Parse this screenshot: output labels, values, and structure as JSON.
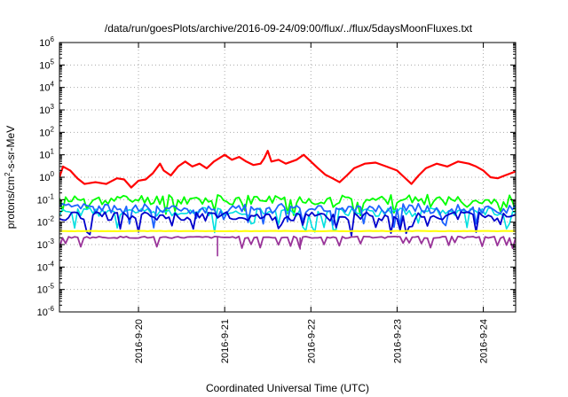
{
  "chart_data": {
    "type": "line",
    "title": "/data/run/goesPlots/archive/2016-09-24/09:00/flux/../flux/5daysMoonFluxes.txt",
    "xlabel": "Coordinated Universal Time (UTC)",
    "ylabel_parts": [
      "protons/cm",
      "2",
      "-s-sr-MeV"
    ],
    "y_scale": "log",
    "ylim": [
      1e-06,
      1000000.0
    ],
    "y_ticks": [
      {
        "base": "10",
        "exp": "-6",
        "value": 1e-06
      },
      {
        "base": "10",
        "exp": "-5",
        "value": 1e-05
      },
      {
        "base": "10",
        "exp": "-4",
        "value": 0.0001
      },
      {
        "base": "10",
        "exp": "-3",
        "value": 0.001
      },
      {
        "base": "10",
        "exp": "-2",
        "value": 0.01
      },
      {
        "base": "10",
        "exp": "-1",
        "value": 0.1
      },
      {
        "base": "10",
        "exp": "0",
        "value": 1
      },
      {
        "base": "10",
        "exp": "1",
        "value": 10
      },
      {
        "base": "10",
        "exp": "2",
        "value": 100
      },
      {
        "base": "10",
        "exp": "3",
        "value": 1000
      },
      {
        "base": "10",
        "exp": "4",
        "value": 10000
      },
      {
        "base": "10",
        "exp": "5",
        "value": 100000
      },
      {
        "base": "10",
        "exp": "6",
        "value": 1000000
      }
    ],
    "xlim": [
      "2016-09-19T02:00",
      "2016-09-24T09:00"
    ],
    "x_ticks": [
      {
        "label": "2016-9-20",
        "value": "2016-09-20T00:00"
      },
      {
        "label": "2016-9-21",
        "value": "2016-09-21T00:00"
      },
      {
        "label": "2016-9-22",
        "value": "2016-09-22T00:00"
      },
      {
        "label": "2016-9-23",
        "value": "2016-09-23T00:00"
      },
      {
        "label": "2016-9-24",
        "value": "2016-09-24T00:00"
      }
    ],
    "grid": true,
    "series": [
      {
        "color": "#ff0000",
        "width": 2.2,
        "points": [
          [
            "2016-09-19T02:00",
            1.0
          ],
          [
            "2016-09-19T03:00",
            3.0
          ],
          [
            "2016-09-19T05:00",
            2.0
          ],
          [
            "2016-09-19T07:00",
            0.9
          ],
          [
            "2016-09-19T09:00",
            0.5
          ],
          [
            "2016-09-19T12:00",
            0.6
          ],
          [
            "2016-09-19T15:00",
            0.5
          ],
          [
            "2016-09-19T18:00",
            0.9
          ],
          [
            "2016-09-19T20:00",
            0.8
          ],
          [
            "2016-09-19T22:00",
            0.35
          ],
          [
            "2016-09-20T00:00",
            0.7
          ],
          [
            "2016-09-20T02:00",
            0.8
          ],
          [
            "2016-09-20T04:00",
            1.5
          ],
          [
            "2016-09-20T06:00",
            4.0
          ],
          [
            "2016-09-20T07:00",
            2.0
          ],
          [
            "2016-09-20T09:00",
            1.2
          ],
          [
            "2016-09-20T11:00",
            3.0
          ],
          [
            "2016-09-20T13:00",
            5.0
          ],
          [
            "2016-09-20T15:00",
            3.0
          ],
          [
            "2016-09-20T17:00",
            4.0
          ],
          [
            "2016-09-20T19:00",
            2.5
          ],
          [
            "2016-09-20T21:00",
            5.0
          ],
          [
            "2016-09-21T00:00",
            10.0
          ],
          [
            "2016-09-21T02:00",
            6.0
          ],
          [
            "2016-09-21T04:00",
            8.0
          ],
          [
            "2016-09-21T06:00",
            5.0
          ],
          [
            "2016-09-21T08:00",
            3.5
          ],
          [
            "2016-09-21T10:00",
            4.0
          ],
          [
            "2016-09-21T11:00",
            7.0
          ],
          [
            "2016-09-21T12:00",
            15.0
          ],
          [
            "2016-09-21T13:00",
            5.0
          ],
          [
            "2016-09-21T15:00",
            6.0
          ],
          [
            "2016-09-21T17:00",
            4.0
          ],
          [
            "2016-09-21T20:00",
            6.0
          ],
          [
            "2016-09-21T22:00",
            10.0
          ],
          [
            "2016-09-22T00:00",
            5.0
          ],
          [
            "2016-09-22T02:00",
            2.5
          ],
          [
            "2016-09-22T04:00",
            1.3
          ],
          [
            "2016-09-22T06:00",
            0.9
          ],
          [
            "2016-09-22T08:00",
            0.6
          ],
          [
            "2016-09-22T10:00",
            1.2
          ],
          [
            "2016-09-22T12:00",
            2.5
          ],
          [
            "2016-09-22T15:00",
            4.0
          ],
          [
            "2016-09-22T18:00",
            4.5
          ],
          [
            "2016-09-22T21:00",
            3.0
          ],
          [
            "2016-09-23T00:00",
            2.0
          ],
          [
            "2016-09-23T02:00",
            1.0
          ],
          [
            "2016-09-23T04:00",
            0.5
          ],
          [
            "2016-09-23T06:00",
            1.2
          ],
          [
            "2016-09-23T08:00",
            2.5
          ],
          [
            "2016-09-23T11:00",
            4.0
          ],
          [
            "2016-09-23T14:00",
            3.0
          ],
          [
            "2016-09-23T17:00",
            5.0
          ],
          [
            "2016-09-23T20:00",
            4.0
          ],
          [
            "2016-09-23T22:00",
            3.0
          ],
          [
            "2016-09-24T00:00",
            2.0
          ],
          [
            "2016-09-24T02:00",
            1.0
          ],
          [
            "2016-09-24T04:00",
            0.9
          ],
          [
            "2016-09-24T06:00",
            1.2
          ],
          [
            "2016-09-24T09:00",
            1.8
          ]
        ]
      }
    ],
    "bands": [
      {
        "color": "#00ff00",
        "width": 1.8,
        "center": 0.1,
        "spread": 0.45,
        "seed": 11,
        "dips": 0.35
      },
      {
        "color": "#00e0e0",
        "width": 1.6,
        "center": 0.028,
        "spread": 0.4,
        "seed": 23,
        "dips": 0.55
      },
      {
        "color": "#1e64ff",
        "width": 1.8,
        "center": 0.04,
        "spread": 0.45,
        "seed": 37,
        "dips": 0.55
      },
      {
        "color": "#0000cc",
        "width": 1.8,
        "center": 0.018,
        "spread": 0.4,
        "seed": 51,
        "dips": 0.45
      },
      {
        "color": "#ffff00",
        "width": 2.0,
        "center": 0.004,
        "spread": 0.02,
        "seed": 63,
        "dips": 0.0
      },
      {
        "color": "#993399",
        "width": 1.8,
        "center": 0.0021,
        "spread": 0.08,
        "seed": 77,
        "dips": 0.25
      }
    ],
    "spikes": [
      {
        "color": "#993399",
        "x": "2016-09-20T22:00",
        "y": 0.0003
      },
      {
        "color": "#993399",
        "x": "2016-09-21T21:00",
        "y": 0.0006
      }
    ]
  }
}
